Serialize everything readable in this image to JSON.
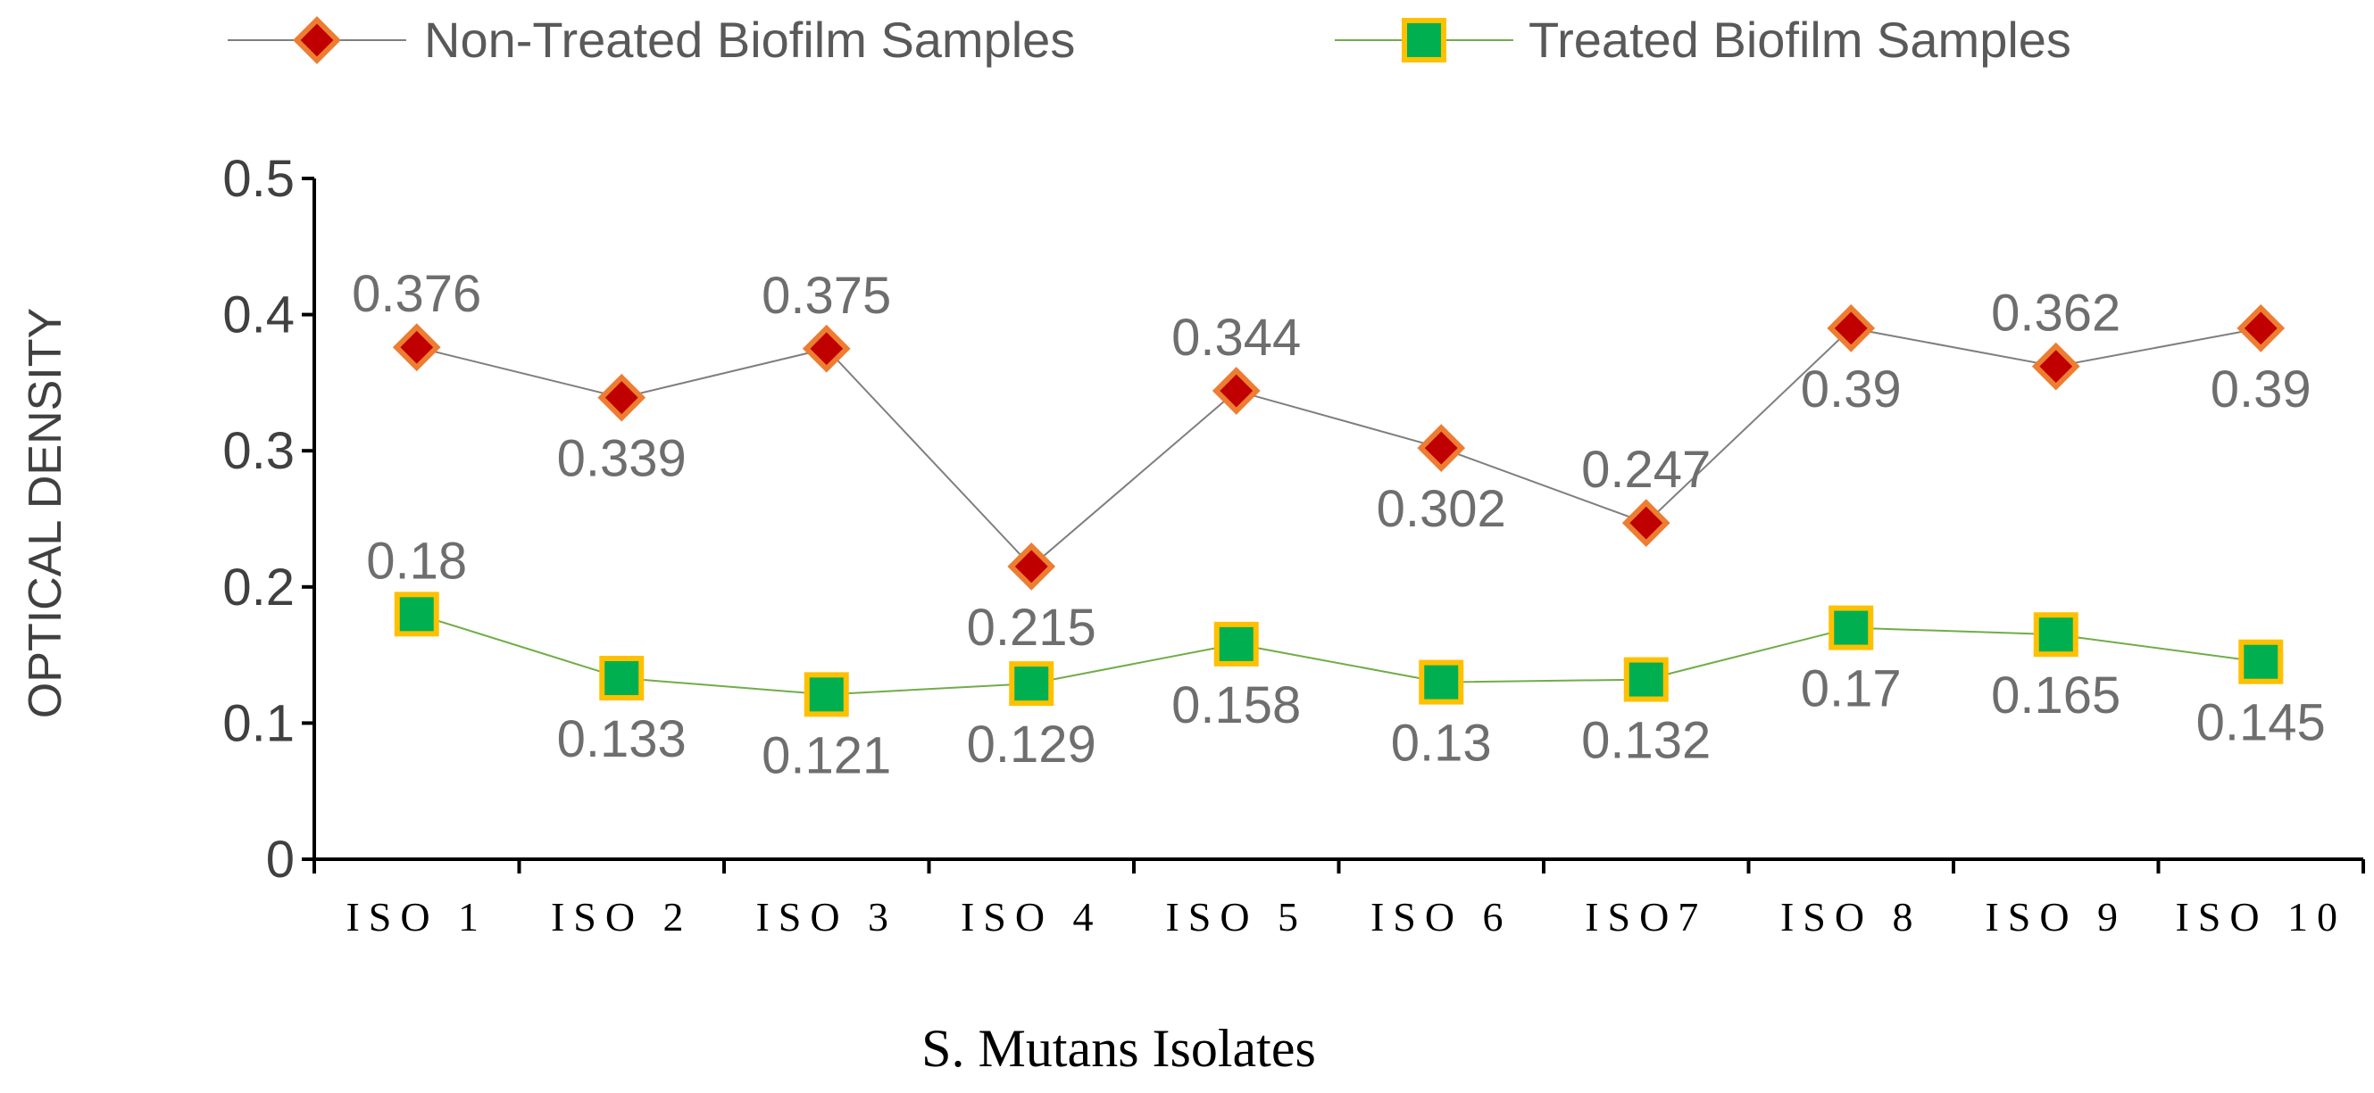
{
  "chart_data": {
    "type": "line",
    "title": "",
    "xlabel": "S. Mutans Isolates",
    "ylabel": "OPTICAL DENSITY",
    "categories": [
      "ISO 1",
      "ISO 2",
      "ISO 3",
      "ISO 4",
      "ISO 5",
      "ISO 6",
      "ISO7",
      "ISO 8",
      "ISO 9",
      "ISO 10"
    ],
    "ylim": [
      0,
      0.5
    ],
    "yticks": [
      0,
      0.1,
      0.2,
      0.3,
      0.4,
      0.5
    ],
    "ytick_labels": [
      "0",
      "0.1",
      "0.2",
      "0.3",
      "0.4",
      "0.5"
    ],
    "grid": false,
    "legend_position": "top",
    "series": [
      {
        "name": "Non-Treated Biofilm Samples",
        "values": [
          0.376,
          0.339,
          0.375,
          0.215,
          0.344,
          0.302,
          0.247,
          0.39,
          0.362,
          0.39
        ],
        "labels": [
          "0.376",
          "0.339",
          "0.375",
          "0.215",
          "0.344",
          "0.302",
          "0.247",
          "0.39",
          "0.362",
          "0.39"
        ],
        "label_side": [
          "above",
          "below",
          "above",
          "below",
          "above",
          "below",
          "above",
          "below",
          "above",
          "below"
        ],
        "marker": "diamond",
        "line_color": "#7f7f7f",
        "marker_fill": "#c00000",
        "marker_edge": "#ed7d31"
      },
      {
        "name": "Treated Biofilm Samples",
        "values": [
          0.18,
          0.133,
          0.121,
          0.129,
          0.158,
          0.13,
          0.132,
          0.17,
          0.165,
          0.145
        ],
        "labels": [
          "0.18",
          "0.133",
          "0.121",
          "0.129",
          "0.158",
          "0.13",
          "0.132",
          "0.17",
          "0.165",
          "0.145"
        ],
        "label_side": [
          "above",
          "below",
          "below",
          "below",
          "below",
          "below",
          "below",
          "below",
          "below",
          "below"
        ],
        "marker": "square",
        "line_color": "#70ad47",
        "marker_fill": "#00b050",
        "marker_edge": "#ffc000"
      }
    ]
  }
}
